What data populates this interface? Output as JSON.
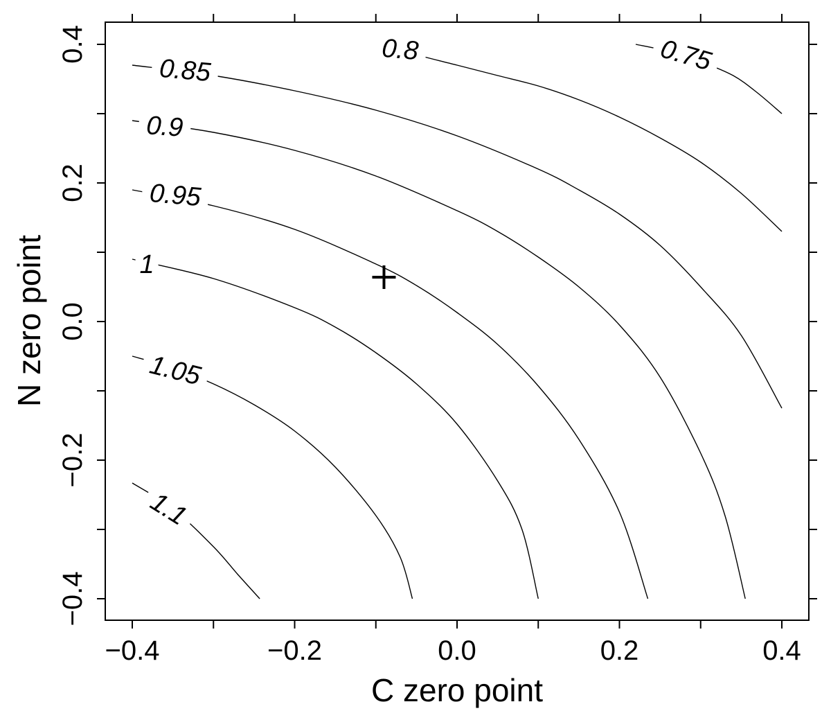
{
  "chart_data": {
    "type": "contour",
    "xlabel": "C zero point",
    "ylabel": "N zero point",
    "xlim": [
      -0.43,
      0.43
    ],
    "ylim": [
      -0.43,
      0.43
    ],
    "x_ticks": [
      -0.4,
      -0.2,
      0.0,
      0.2,
      0.4
    ],
    "y_ticks": [
      -0.4,
      -0.2,
      0.0,
      0.2,
      0.4
    ],
    "x_tick_labels": [
      "−0.4",
      "−0.2",
      "0.0",
      "0.2",
      "0.4"
    ],
    "y_tick_labels": [
      "−0.4",
      "−0.2",
      "0.0",
      "0.2",
      "0.4"
    ],
    "contours": [
      {
        "level": "0.75",
        "points": [
          [
            0.22,
            0.4
          ],
          [
            0.26,
            0.39
          ],
          [
            0.3,
            0.375
          ],
          [
            0.34,
            0.355
          ],
          [
            0.37,
            0.33
          ],
          [
            0.4,
            0.3
          ]
        ]
      },
      {
        "level": "0.8",
        "points": [
          [
            -0.09,
            0.4
          ],
          [
            -0.05,
            0.385
          ],
          [
            0.0,
            0.37
          ],
          [
            0.05,
            0.355
          ],
          [
            0.1,
            0.34
          ],
          [
            0.15,
            0.32
          ],
          [
            0.2,
            0.295
          ],
          [
            0.25,
            0.265
          ],
          [
            0.3,
            0.23
          ],
          [
            0.35,
            0.185
          ],
          [
            0.4,
            0.13
          ]
        ]
      },
      {
        "level": "0.85",
        "points": [
          [
            -0.4,
            0.37
          ],
          [
            -0.3,
            0.355
          ],
          [
            -0.2,
            0.333
          ],
          [
            -0.1,
            0.305
          ],
          [
            0.0,
            0.268
          ],
          [
            0.1,
            0.22
          ],
          [
            0.15,
            0.19
          ],
          [
            0.2,
            0.155
          ],
          [
            0.25,
            0.11
          ],
          [
            0.3,
            0.05
          ],
          [
            0.35,
            -0.02
          ],
          [
            0.4,
            -0.125
          ]
        ]
      },
      {
        "level": "0.9",
        "points": [
          [
            -0.4,
            0.29
          ],
          [
            -0.3,
            0.273
          ],
          [
            -0.2,
            0.247
          ],
          [
            -0.1,
            0.21
          ],
          [
            0.0,
            0.16
          ],
          [
            0.05,
            0.13
          ],
          [
            0.1,
            0.093
          ],
          [
            0.15,
            0.05
          ],
          [
            0.2,
            -0.005
          ],
          [
            0.25,
            -0.08
          ],
          [
            0.3,
            -0.19
          ],
          [
            0.33,
            -0.28
          ],
          [
            0.355,
            -0.4
          ]
        ]
      },
      {
        "level": "0.95",
        "points": [
          [
            -0.4,
            0.19
          ],
          [
            -0.3,
            0.167
          ],
          [
            -0.2,
            0.133
          ],
          [
            -0.1,
            0.083
          ],
          [
            -0.05,
            0.052
          ],
          [
            0.0,
            0.013
          ],
          [
            0.05,
            -0.033
          ],
          [
            0.1,
            -0.093
          ],
          [
            0.15,
            -0.17
          ],
          [
            0.2,
            -0.275
          ],
          [
            0.235,
            -0.4
          ]
        ]
      },
      {
        "level": "1",
        "points": [
          [
            -0.4,
            0.09
          ],
          [
            -0.3,
            0.062
          ],
          [
            -0.2,
            0.02
          ],
          [
            -0.15,
            -0.008
          ],
          [
            -0.1,
            -0.045
          ],
          [
            -0.05,
            -0.09
          ],
          [
            0.0,
            -0.148
          ],
          [
            0.05,
            -0.23
          ],
          [
            0.08,
            -0.3
          ],
          [
            0.1,
            -0.4
          ]
        ]
      },
      {
        "level": "1.05",
        "points": [
          [
            -0.4,
            -0.05
          ],
          [
            -0.35,
            -0.067
          ],
          [
            -0.3,
            -0.09
          ],
          [
            -0.25,
            -0.12
          ],
          [
            -0.2,
            -0.158
          ],
          [
            -0.15,
            -0.21
          ],
          [
            -0.1,
            -0.28
          ],
          [
            -0.07,
            -0.34
          ],
          [
            -0.055,
            -0.4
          ]
        ]
      },
      {
        "level": "1.1",
        "points": [
          [
            -0.4,
            -0.233
          ],
          [
            -0.35,
            -0.27
          ],
          [
            -0.3,
            -0.325
          ],
          [
            -0.27,
            -0.365
          ],
          [
            -0.243,
            -0.4
          ]
        ]
      }
    ],
    "contour_labels": [
      {
        "text": "0.75",
        "x": 0.282,
        "y": 0.385,
        "angle": 16
      },
      {
        "text": "0.8",
        "x": -0.07,
        "y": 0.393,
        "angle": 5
      },
      {
        "text": "0.85",
        "x": -0.335,
        "y": 0.363,
        "angle": 5
      },
      {
        "text": "0.9",
        "x": -0.36,
        "y": 0.282,
        "angle": 4
      },
      {
        "text": "0.95",
        "x": -0.347,
        "y": 0.183,
        "angle": 5
      },
      {
        "text": "1",
        "x": -0.382,
        "y": 0.083,
        "angle": 0
      },
      {
        "text": "1.05",
        "x": -0.347,
        "y": -0.07,
        "angle": 14
      },
      {
        "text": "1.1",
        "x": -0.355,
        "y": -0.27,
        "angle": 32
      }
    ],
    "marker": {
      "symbol": "+",
      "x": -0.09,
      "y": 0.06
    }
  }
}
